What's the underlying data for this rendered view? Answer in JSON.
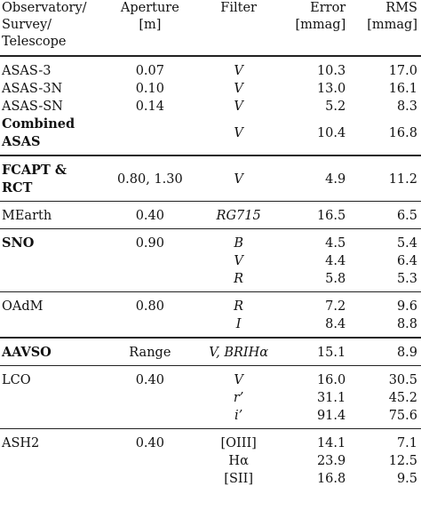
{
  "headers": {
    "col0": [
      "Observatory/",
      "Survey/",
      "Telescope"
    ],
    "col1": [
      "Aperture",
      "[m]"
    ],
    "col2": "Filter",
    "col3": [
      "Error",
      "[mmag]"
    ],
    "col4": [
      "RMS",
      "[mmag]"
    ]
  },
  "groups": [
    {
      "rows": [
        {
          "name": "ASAS-3",
          "aperture": "0.07",
          "filter": "V",
          "error": "10.3",
          "rms": "17.0"
        },
        {
          "name": "ASAS-3N",
          "aperture": "0.10",
          "filter": "V",
          "error": "13.0",
          "rms": "16.1"
        },
        {
          "name": "ASAS-SN",
          "aperture": "0.14",
          "filter": "V",
          "error": "5.2",
          "rms": "8.3"
        }
      ],
      "combined": {
        "name_line1": "Combined",
        "name_line2": "ASAS",
        "aperture": "",
        "filter": "V",
        "error": "10.4",
        "rms": "16.8"
      }
    },
    {
      "rows": [
        {
          "name_line1": "FCAPT &",
          "name_line2": "RCT",
          "aperture": "0.80, 1.30",
          "filter": "V",
          "error": "4.9",
          "rms": "11.2"
        }
      ]
    },
    {
      "rows": [
        {
          "name": "MEarth",
          "aperture": "0.40",
          "filter": "RG715",
          "error": "16.5",
          "rms": "6.5"
        }
      ]
    },
    {
      "rows": [
        {
          "name": "SNO",
          "aperture": "0.90",
          "filter": "B",
          "error": "4.5",
          "rms": "5.4"
        },
        {
          "name": "",
          "aperture": "",
          "filter": "V",
          "error": "4.4",
          "rms": "6.4"
        },
        {
          "name": "",
          "aperture": "",
          "filter": "R",
          "error": "5.8",
          "rms": "5.3"
        }
      ]
    },
    {
      "rows": [
        {
          "name": "OAdM",
          "aperture": "0.80",
          "filter": "R",
          "error": "7.2",
          "rms": "9.6"
        },
        {
          "name": "",
          "aperture": "",
          "filter": "I",
          "error": "8.4",
          "rms": "8.8"
        }
      ]
    },
    {
      "rows": [
        {
          "name": "AAVSO",
          "aperture": "Range",
          "filter": "V, BRIHα",
          "error": "15.1",
          "rms": "8.9"
        }
      ]
    },
    {
      "rows": [
        {
          "name": "LCO",
          "aperture": "0.40",
          "filter": "V",
          "error": "16.0",
          "rms": "30.5"
        },
        {
          "name": "",
          "aperture": "",
          "filter": "r’",
          "error": "31.1",
          "rms": "45.2"
        },
        {
          "name": "",
          "aperture": "",
          "filter": "i’",
          "error": "91.4",
          "rms": "75.6"
        }
      ]
    },
    {
      "rows": [
        {
          "name": "ASH2",
          "aperture": "0.40",
          "filter": "[OIII]",
          "error": "14.1",
          "rms": "7.1"
        },
        {
          "name": "",
          "aperture": "",
          "filter": "Hα",
          "error": "23.9",
          "rms": "12.5"
        },
        {
          "name": "",
          "aperture": "",
          "filter": "[SII]",
          "error": "16.8",
          "rms": "9.5"
        }
      ]
    }
  ]
}
